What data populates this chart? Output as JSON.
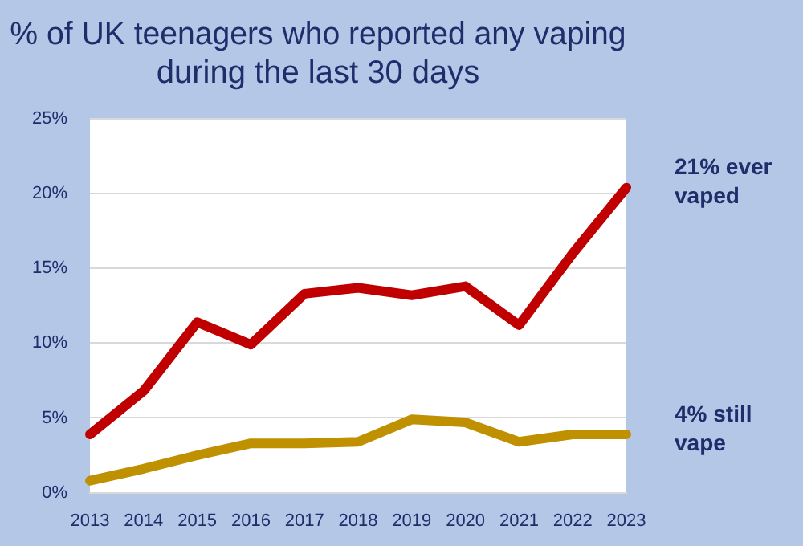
{
  "chart_data": {
    "type": "line",
    "title": "% of UK teenagers who reported any vaping during the last 30 days",
    "categories": [
      "2013",
      "2014",
      "2015",
      "2016",
      "2017",
      "2018",
      "2019",
      "2020",
      "2021",
      "2022",
      "2023"
    ],
    "series": [
      {
        "name": "21% ever vaped",
        "color": "#c00000",
        "values": [
          3.9,
          6.8,
          11.4,
          9.9,
          13.3,
          13.7,
          13.2,
          13.8,
          11.2,
          16.0,
          20.4
        ]
      },
      {
        "name": "4% still vape",
        "color": "#bf9000",
        "values": [
          0.8,
          1.6,
          2.5,
          3.3,
          3.3,
          3.4,
          4.9,
          4.7,
          3.4,
          3.9,
          3.9
        ]
      }
    ],
    "ylim": [
      0,
      25
    ],
    "yticks": [
      {
        "value": 0,
        "label": "0%"
      },
      {
        "value": 5,
        "label": "5%"
      },
      {
        "value": 10,
        "label": "10%"
      },
      {
        "value": 15,
        "label": "15%"
      },
      {
        "value": 20,
        "label": "20%"
      },
      {
        "value": 25,
        "label": "25%"
      }
    ],
    "grid": "y",
    "legend": false,
    "marker": "none",
    "line_style": "solid"
  }
}
